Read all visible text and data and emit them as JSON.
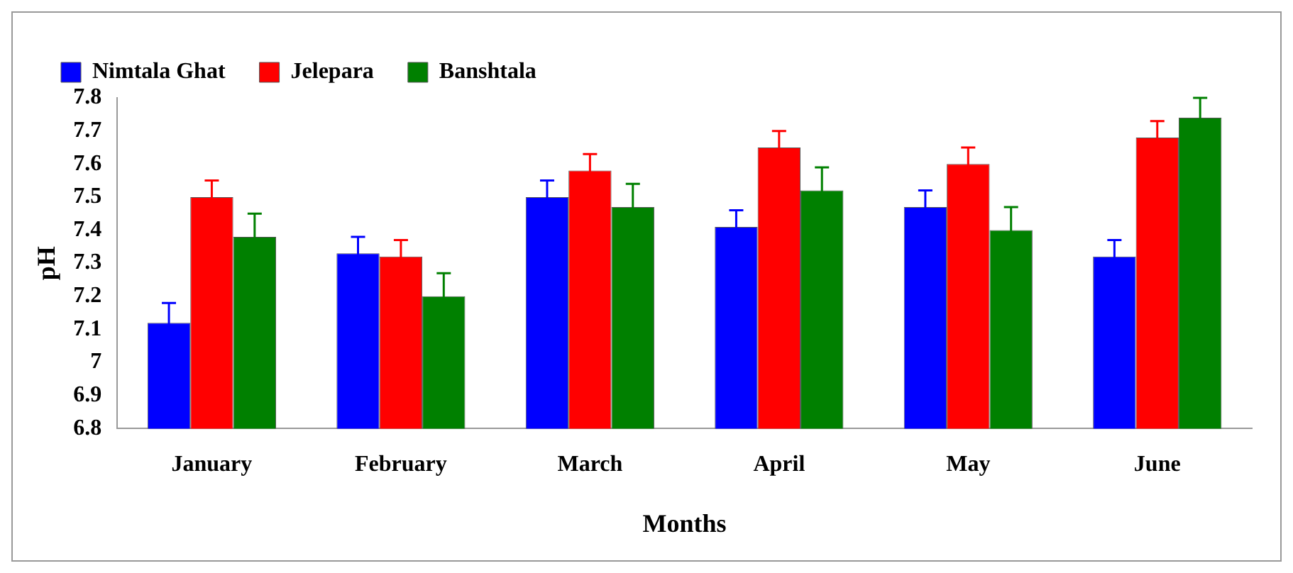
{
  "chart_data": {
    "type": "bar",
    "xlabel": "Months",
    "ylabel": "pH",
    "categories": [
      "January",
      "February",
      "March",
      "April",
      "May",
      "June"
    ],
    "series": [
      {
        "name": "Nimtala Ghat",
        "color": "#0000ff",
        "values": [
          7.12,
          7.33,
          7.5,
          7.41,
          7.47,
          7.32
        ],
        "errors": [
          0.06,
          0.05,
          0.05,
          0.05,
          0.05,
          0.05
        ]
      },
      {
        "name": "Jelepara",
        "color": "#ff0000",
        "values": [
          7.5,
          7.32,
          7.58,
          7.65,
          7.6,
          7.68
        ],
        "errors": [
          0.05,
          0.05,
          0.05,
          0.05,
          0.05,
          0.05
        ]
      },
      {
        "name": "Banshtala",
        "color": "#008000",
        "values": [
          7.38,
          7.2,
          7.47,
          7.52,
          7.4,
          7.74
        ],
        "errors": [
          0.07,
          0.07,
          0.07,
          0.07,
          0.07,
          0.06
        ]
      }
    ],
    "ylim": [
      6.8,
      7.8
    ],
    "yticks": [
      6.8,
      6.9,
      7,
      7.1,
      7.2,
      7.3,
      7.4,
      7.5,
      7.6,
      7.7,
      7.8
    ],
    "grid": false,
    "legend": "top"
  }
}
